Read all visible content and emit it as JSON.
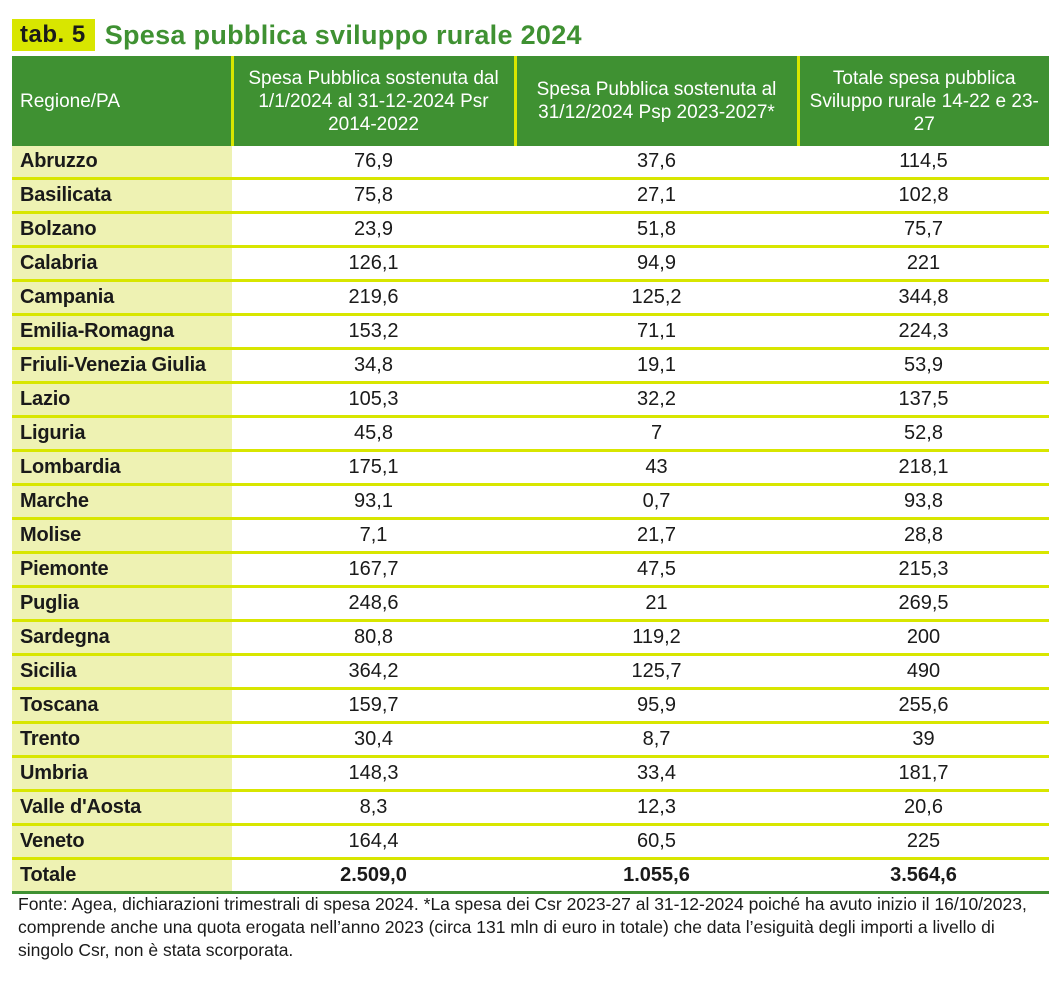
{
  "header": {
    "tab_label": "tab. 5",
    "title": "Spesa pubblica sviluppo rurale 2024"
  },
  "colors": {
    "header_green": "#3f9132",
    "accent_lime": "#d8e600",
    "region_cell_bg": "#eef2b3"
  },
  "table": {
    "columns": [
      "Regione/PA",
      "Spesa Pubblica sostenuta dal 1/1/2024 al 31-12-2024 Psr 2014-2022",
      "Spesa Pubblica sostenuta al 31/12/2024 Psp 2023-2027*",
      "Totale spesa pubblica Sviluppo rurale 14-22 e 23-27"
    ],
    "rows": [
      [
        "Abruzzo",
        "76,9",
        "37,6",
        "114,5"
      ],
      [
        "Basilicata",
        "75,8",
        "27,1",
        "102,8"
      ],
      [
        "Bolzano",
        "23,9",
        "51,8",
        "75,7"
      ],
      [
        "Calabria",
        "126,1",
        "94,9",
        "221"
      ],
      [
        "Campania",
        "219,6",
        "125,2",
        "344,8"
      ],
      [
        "Emilia-Romagna",
        "153,2",
        "71,1",
        "224,3"
      ],
      [
        "Friuli-Venezia Giulia",
        "34,8",
        "19,1",
        "53,9"
      ],
      [
        "Lazio",
        "105,3",
        "32,2",
        "137,5"
      ],
      [
        "Liguria",
        "45,8",
        "7",
        "52,8"
      ],
      [
        "Lombardia",
        "175,1",
        "43",
        "218,1"
      ],
      [
        "Marche",
        "93,1",
        "0,7",
        "93,8"
      ],
      [
        "Molise",
        "7,1",
        "21,7",
        "28,8"
      ],
      [
        "Piemonte",
        "167,7",
        "47,5",
        "215,3"
      ],
      [
        "Puglia",
        "248,6",
        "21",
        "269,5"
      ],
      [
        "Sardegna",
        "80,8",
        "119,2",
        "200"
      ],
      [
        "Sicilia",
        "364,2",
        "125,7",
        "490"
      ],
      [
        "Toscana",
        "159,7",
        "95,9",
        "255,6"
      ],
      [
        "Trento",
        "30,4",
        "8,7",
        "39"
      ],
      [
        "Umbria",
        "148,3",
        "33,4",
        "181,7"
      ],
      [
        "Valle d'Aosta",
        "8,3",
        "12,3",
        "20,6"
      ],
      [
        "Veneto",
        "164,4",
        "60,5",
        "225"
      ]
    ],
    "total": [
      "Totale",
      "2.509,0",
      "1.055,6",
      "3.564,6"
    ]
  },
  "footnote": "Fonte: Agea, dichiarazioni trimestrali di spesa 2024. *La spesa dei Csr 2023-27 al 31-12-2024 poiché ha avuto inizio il 16/10/2023, comprende anche una quota erogata nell’anno 2023 (circa 131 mln di euro in totale) che data l’esiguità degli importi a livello di singolo Csr, non è stata scorporata."
}
